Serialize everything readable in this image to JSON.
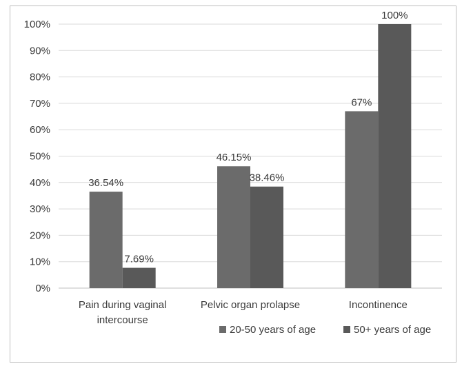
{
  "chart_data": {
    "type": "bar",
    "categories": [
      "Pain during vaginal intercourse",
      "Pelvic organ prolapse",
      "Incontinence"
    ],
    "category_lines": [
      [
        "Pain during vaginal",
        "intercourse"
      ],
      [
        "Pelvic organ prolapse"
      ],
      [
        "Incontinence"
      ]
    ],
    "series": [
      {
        "name": "20-50 years of age",
        "values": [
          36.54,
          46.15,
          67
        ],
        "labels": [
          "36.54%",
          "46.15%",
          "67%"
        ],
        "color": "#6b6b6b"
      },
      {
        "name": "50+ years of age",
        "values": [
          7.69,
          38.46,
          100
        ],
        "labels": [
          "7.69%",
          "38.46%",
          "100%"
        ],
        "color": "#595959"
      }
    ],
    "yticks": [
      "0%",
      "10%",
      "20%",
      "30%",
      "40%",
      "50%",
      "60%",
      "70%",
      "80%",
      "90%",
      "100%"
    ],
    "ylim": [
      0,
      100
    ],
    "grid": true,
    "legend": "bottom-right"
  }
}
